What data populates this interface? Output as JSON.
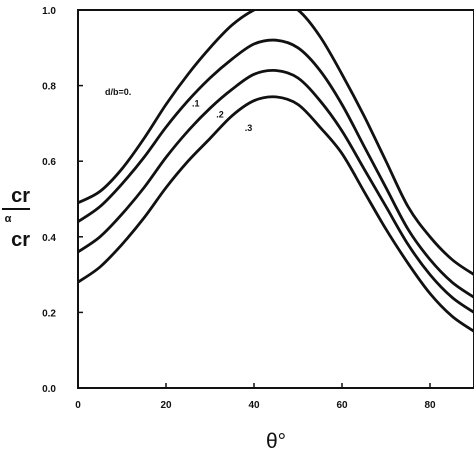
{
  "chart_data": {
    "type": "line",
    "xlabel": "θ°",
    "ylabel_parts": [
      "cr",
      "α",
      "cr"
    ],
    "xlim": [
      0,
      90
    ],
    "ylim": [
      0.0,
      1.0
    ],
    "xticks": [
      "0",
      "20",
      "40",
      "60",
      "80"
    ],
    "yticks": [
      "0.0",
      "0.2",
      "0.4",
      "0.6",
      "0.8",
      "1.0"
    ],
    "grid": false,
    "series": [
      {
        "name": "d/b=0.",
        "x": [
          0,
          5,
          10,
          15,
          20,
          25,
          30,
          35,
          40,
          45,
          50,
          55,
          60,
          65,
          70,
          75,
          80,
          85,
          90
        ],
        "y": [
          0.49,
          0.52,
          0.58,
          0.66,
          0.75,
          0.83,
          0.9,
          0.96,
          1.0,
          1.02,
          1.0,
          0.93,
          0.83,
          0.72,
          0.6,
          0.48,
          0.4,
          0.34,
          0.3
        ]
      },
      {
        "name": ".1",
        "x": [
          0,
          5,
          10,
          15,
          20,
          25,
          30,
          35,
          40,
          45,
          50,
          55,
          60,
          65,
          70,
          75,
          80,
          85,
          90
        ],
        "y": [
          0.44,
          0.48,
          0.54,
          0.61,
          0.69,
          0.76,
          0.82,
          0.87,
          0.91,
          0.92,
          0.9,
          0.84,
          0.75,
          0.64,
          0.53,
          0.42,
          0.34,
          0.28,
          0.24
        ]
      },
      {
        "name": ".2",
        "x": [
          0,
          5,
          10,
          15,
          20,
          25,
          30,
          35,
          40,
          45,
          50,
          55,
          60,
          65,
          70,
          75,
          80,
          85,
          90
        ],
        "y": [
          0.36,
          0.4,
          0.46,
          0.53,
          0.61,
          0.68,
          0.74,
          0.79,
          0.83,
          0.84,
          0.82,
          0.76,
          0.68,
          0.58,
          0.48,
          0.38,
          0.3,
          0.24,
          0.2
        ]
      },
      {
        "name": ".3",
        "x": [
          0,
          5,
          10,
          15,
          20,
          25,
          30,
          35,
          40,
          45,
          50,
          55,
          60,
          65,
          70,
          75,
          80,
          85,
          90
        ],
        "y": [
          0.28,
          0.32,
          0.38,
          0.45,
          0.53,
          0.6,
          0.66,
          0.72,
          0.76,
          0.77,
          0.75,
          0.69,
          0.62,
          0.52,
          0.42,
          0.33,
          0.25,
          0.19,
          0.15
        ]
      }
    ]
  }
}
